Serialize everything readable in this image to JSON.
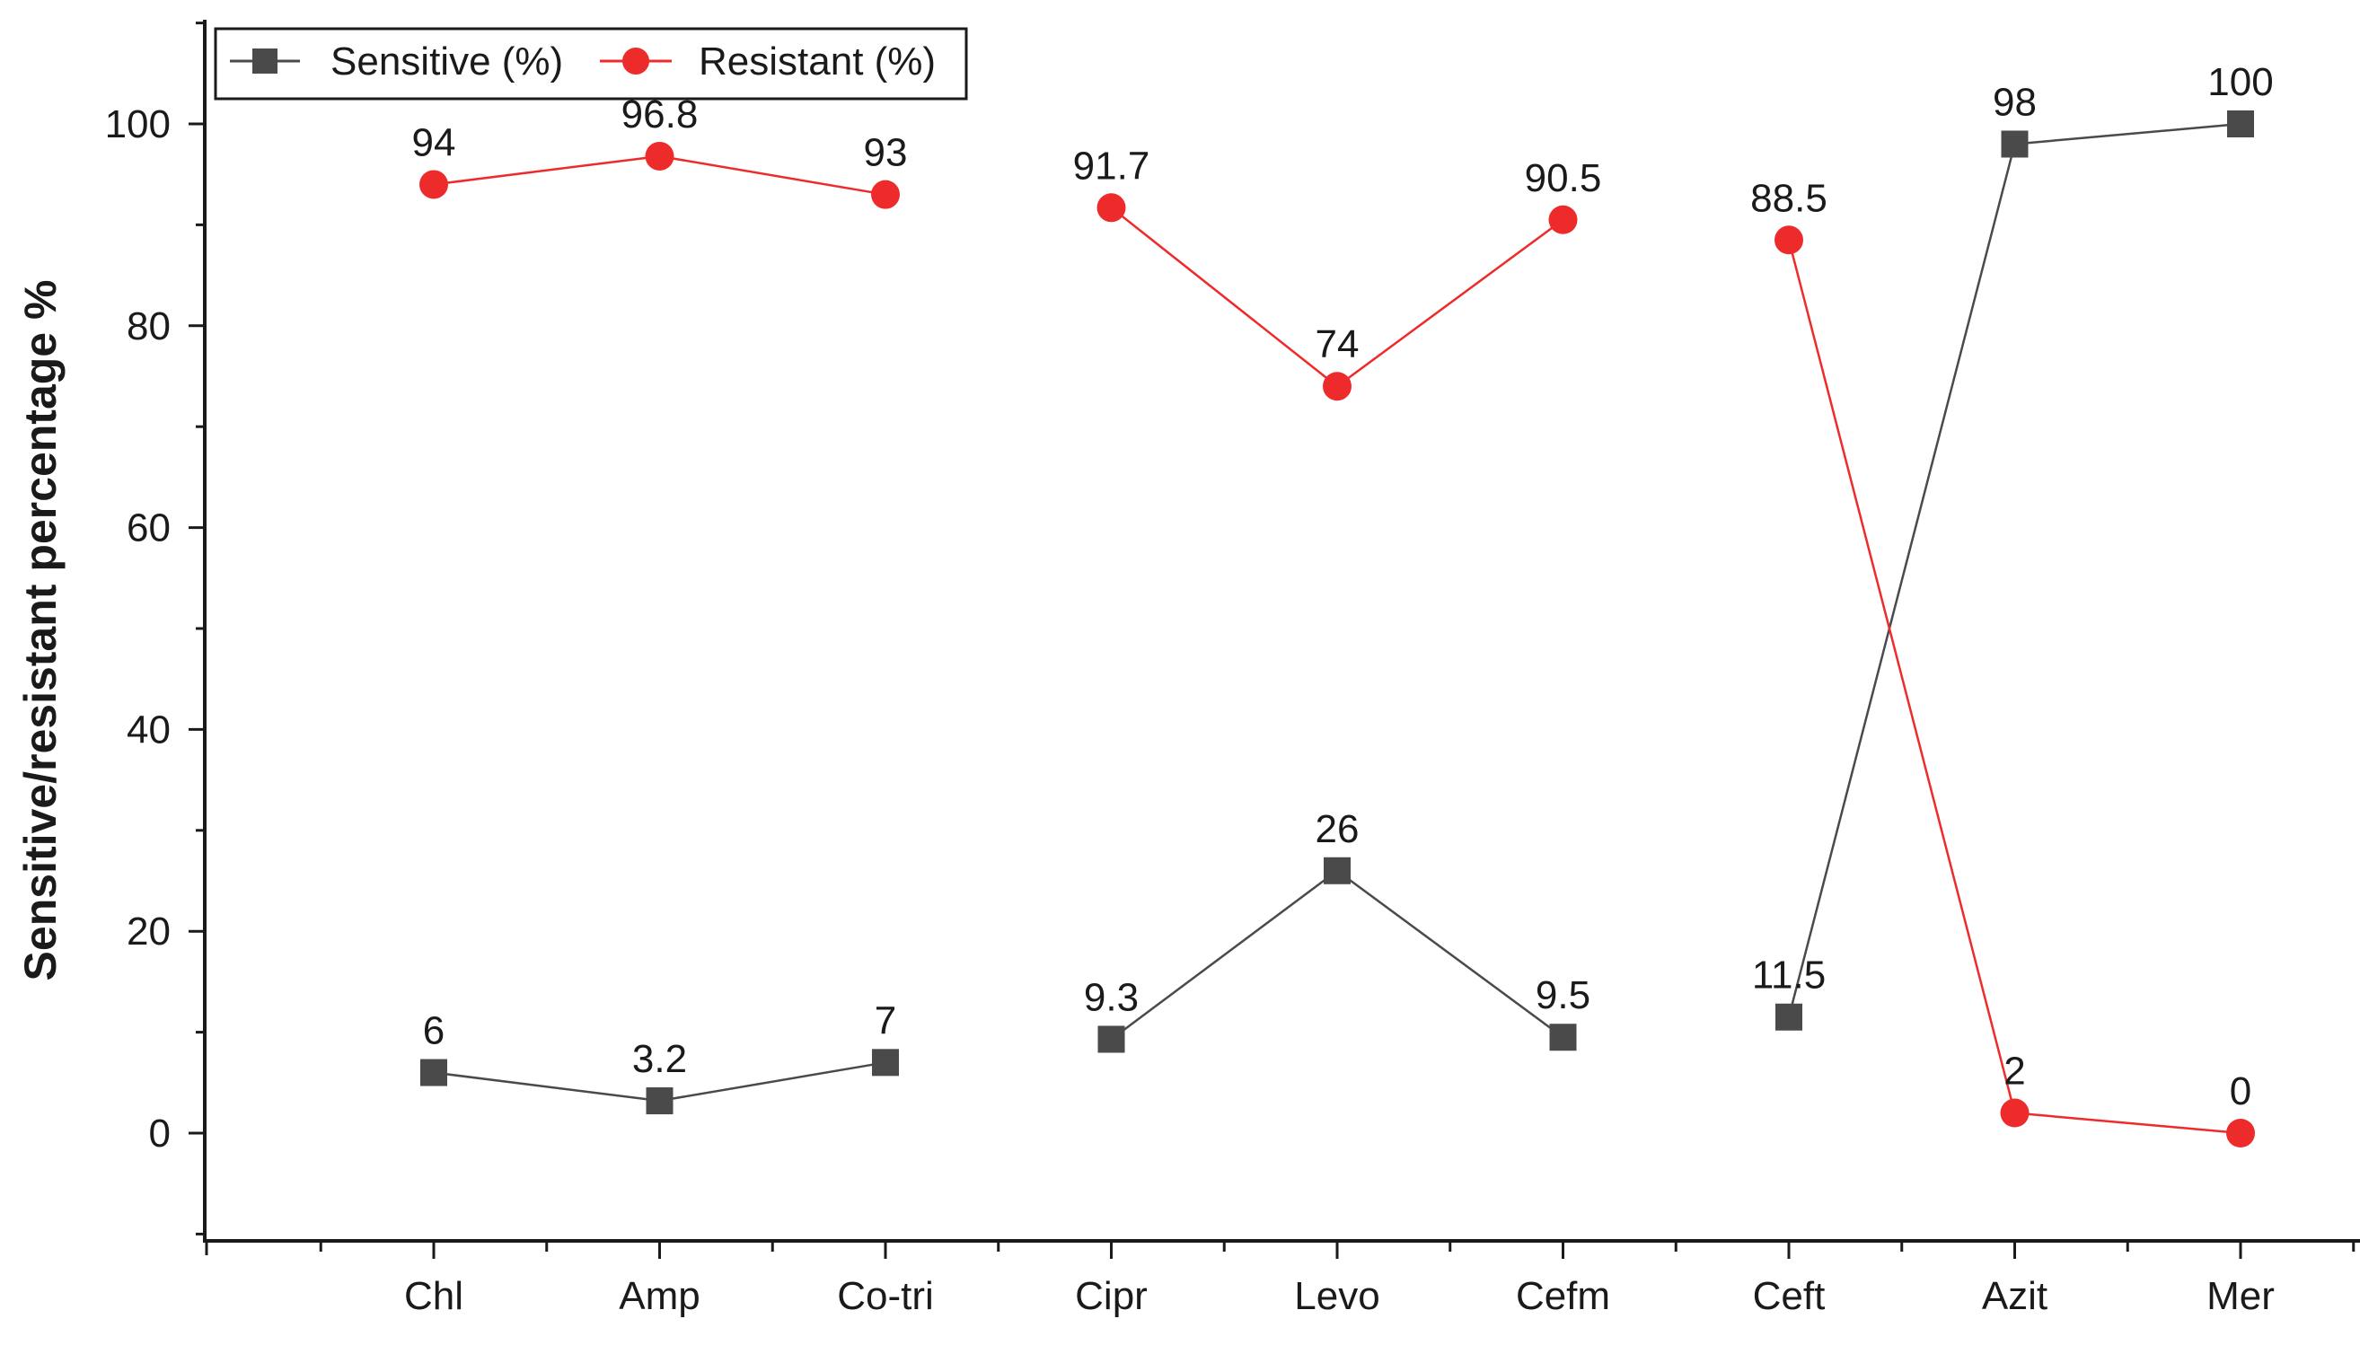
{
  "chart_data": {
    "type": "line",
    "title": "",
    "xlabel": "",
    "ylabel": "Sensitive/resistant percentage %",
    "categories": [
      "Chl",
      "Amp",
      "Co-tri",
      "Cipr",
      "Levo",
      "Cefm",
      "Ceft",
      "Azit",
      "Mer"
    ],
    "ylim": [
      -10,
      110
    ],
    "yticks": [
      0,
      20,
      40,
      60,
      80,
      100
    ],
    "grid": false,
    "legend_position": "top-left",
    "series": [
      {
        "name": "Sensitive (%)",
        "marker": "square",
        "color": "#4a4a4a",
        "values": [
          6,
          3.2,
          7,
          9.3,
          26,
          9.5,
          11.5,
          98,
          100
        ],
        "labels": [
          "6",
          "3.2",
          "7",
          "9.3",
          "26",
          "9.5",
          "11.5",
          "98",
          "100"
        ]
      },
      {
        "name": "Resistant (%)",
        "marker": "circle",
        "color": "#ee2b2b",
        "values": [
          94,
          96.8,
          93,
          91.7,
          74,
          90.5,
          88.5,
          2,
          0
        ],
        "labels": [
          "94",
          "96.8",
          "93",
          "91.7",
          "74",
          "90.5",
          "88.5",
          "2",
          "0"
        ]
      }
    ],
    "segments_broken_between": [
      [
        2,
        3
      ],
      [
        5,
        6
      ]
    ]
  }
}
